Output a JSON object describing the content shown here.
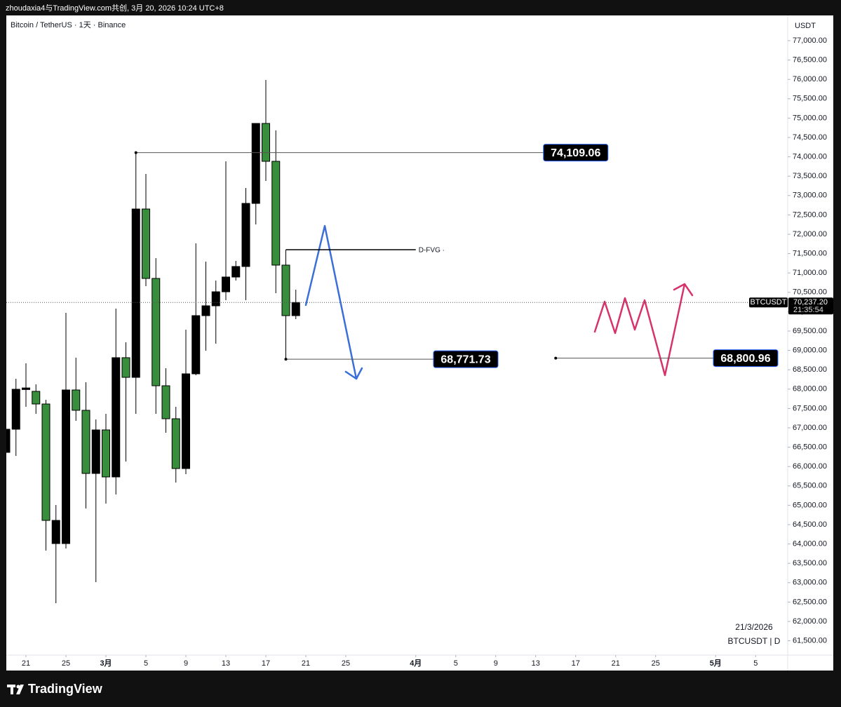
{
  "header": {
    "text": "zhoudaxia4与TradingView.com共创, 3月 20, 2026 10:24 UTC+8"
  },
  "footer": {
    "brand": "TradingView"
  },
  "chart_data": {
    "type": "candlestick",
    "title": "Bitcoin / TetherUS · 1天 · Binance",
    "y_axis_label": "USDT",
    "date_label": "21/3/2026",
    "symbol_label": "BTCUSDT | D",
    "up_color": "#000000",
    "down_color": "#388e3c",
    "wick_color": "#000000",
    "grid": false,
    "x": [
      "02-19",
      "02-20",
      "02-21",
      "02-22",
      "02-23",
      "02-24",
      "02-25",
      "02-26",
      "02-27",
      "02-28",
      "03-01",
      "03-02",
      "03-03",
      "03-04",
      "03-05",
      "03-06",
      "03-07",
      "03-08",
      "03-09",
      "03-10",
      "03-11",
      "03-12",
      "03-13",
      "03-14",
      "03-15",
      "03-16",
      "03-17",
      "03-18",
      "03-19",
      "03-20"
    ],
    "open": [
      66366,
      66964,
      67990,
      67942,
      67616,
      64011,
      64011,
      67978,
      67453,
      65822,
      66946,
      65732,
      68812,
      68304,
      72652,
      70859,
      68087,
      67235,
      65949,
      68395,
      69898,
      70152,
      70514,
      70895,
      71167,
      72797,
      74862,
      73884,
      71203,
      69898
    ],
    "high": [
      67271,
      68268,
      68667,
      68123,
      67725,
      65007,
      69971,
      68812,
      68177,
      67217,
      67362,
      70080,
      69210,
      74109.06,
      73558,
      71384,
      68540,
      67543,
      69536,
      71765,
      71293,
      70804,
      73884,
      71312,
      73196,
      74862,
      75986,
      74681,
      71602,
      70569
    ],
    "low": [
      65587,
      66275,
      67543,
      67362,
      63830,
      62471,
      63884,
      67181,
      64917,
      63014,
      65043,
      65279,
      66130,
      67362,
      70659,
      67362,
      66873,
      65587,
      65804,
      68359,
      68993,
      69174,
      70297,
      70804,
      70297,
      72254,
      73377,
      70478,
      68771.73,
      69808
    ],
    "close": [
      66964,
      67996,
      68030,
      67616,
      64609,
      64609,
      67978,
      67453,
      65822,
      66946,
      65732,
      68812,
      68304,
      72652,
      70859,
      68087,
      67235,
      65949,
      68395,
      69898,
      70152,
      70514,
      70895,
      71167,
      72797,
      74862,
      73884,
      71203,
      69898,
      70237.2
    ],
    "xlim": [
      "02-19",
      "05-08"
    ],
    "xticks": [
      {
        "value": "02-21",
        "label": "21"
      },
      {
        "value": "02-25",
        "label": "25"
      },
      {
        "value": "03-01",
        "label": "3月"
      },
      {
        "value": "03-05",
        "label": "5"
      },
      {
        "value": "03-09",
        "label": "9"
      },
      {
        "value": "03-13",
        "label": "13"
      },
      {
        "value": "03-17",
        "label": "17"
      },
      {
        "value": "03-21",
        "label": "21"
      },
      {
        "value": "03-25",
        "label": "25"
      },
      {
        "value": "04-01",
        "label": "4月"
      },
      {
        "value": "04-05",
        "label": "5"
      },
      {
        "value": "04-09",
        "label": "9"
      },
      {
        "value": "04-13",
        "label": "13"
      },
      {
        "value": "04-17",
        "label": "17"
      },
      {
        "value": "04-21",
        "label": "21"
      },
      {
        "value": "04-25",
        "label": "25"
      },
      {
        "value": "05-01",
        "label": "5月"
      },
      {
        "value": "05-05",
        "label": "5"
      }
    ],
    "ylim": [
      61130,
      77652
    ],
    "yticks": [
      {
        "value": 61500,
        "label": "61,500.00"
      },
      {
        "value": 62000,
        "label": "62,000.00"
      },
      {
        "value": 62500,
        "label": "62,500.00"
      },
      {
        "value": 63000,
        "label": "63,000.00"
      },
      {
        "value": 63500,
        "label": "63,500.00"
      },
      {
        "value": 64000,
        "label": "64,000.00"
      },
      {
        "value": 64500,
        "label": "64,500.00"
      },
      {
        "value": 65000,
        "label": "65,000.00"
      },
      {
        "value": 65500,
        "label": "65,500.00"
      },
      {
        "value": 66000,
        "label": "66,000.00"
      },
      {
        "value": 66500,
        "label": "66,500.00"
      },
      {
        "value": 67000,
        "label": "67,000.00"
      },
      {
        "value": 67500,
        "label": "67,500.00"
      },
      {
        "value": 68000,
        "label": "68,000.00"
      },
      {
        "value": 68500,
        "label": "68,500.00"
      },
      {
        "value": 69000,
        "label": "69,000.00"
      },
      {
        "value": 69500,
        "label": "69,500.00"
      },
      {
        "value": 70000,
        "label": "70,000.00"
      },
      {
        "value": 70500,
        "label": "70,500.00"
      },
      {
        "value": 71000,
        "label": "71,000.00"
      },
      {
        "value": 71500,
        "label": "71,500.00"
      },
      {
        "value": 72000,
        "label": "72,000.00"
      },
      {
        "value": 72500,
        "label": "72,500.00"
      },
      {
        "value": 73000,
        "label": "73,000.00"
      },
      {
        "value": 73500,
        "label": "73,500.00"
      },
      {
        "value": 74000,
        "label": "74,000.00"
      },
      {
        "value": 74500,
        "label": "74,500.00"
      },
      {
        "value": 75000,
        "label": "75,000.00"
      },
      {
        "value": 75500,
        "label": "75,500.00"
      },
      {
        "value": 76000,
        "label": "76,000.00"
      },
      {
        "value": 76500,
        "label": "76,500.00"
      },
      {
        "value": 77000,
        "label": "77,000.00"
      }
    ],
    "levels": [
      {
        "value": 74109.06,
        "label": "74,109.06",
        "from": "03-04",
        "to": "04-17"
      },
      {
        "value": 68771.73,
        "label": "68,771.73",
        "from": "03-19",
        "to": "04-06"
      },
      {
        "value": 68800.96,
        "label": "68,800.96",
        "from": "04-15",
        "to": "05-04"
      }
    ],
    "fvg": {
      "value": 71602,
      "label": "D-FVG ·",
      "from": "03-19",
      "to": "04-01"
    },
    "last_price": {
      "value": 70237.2,
      "label": "70,237.20",
      "symbol": "BTCUSDT",
      "countdown": "21:35:54"
    }
  }
}
